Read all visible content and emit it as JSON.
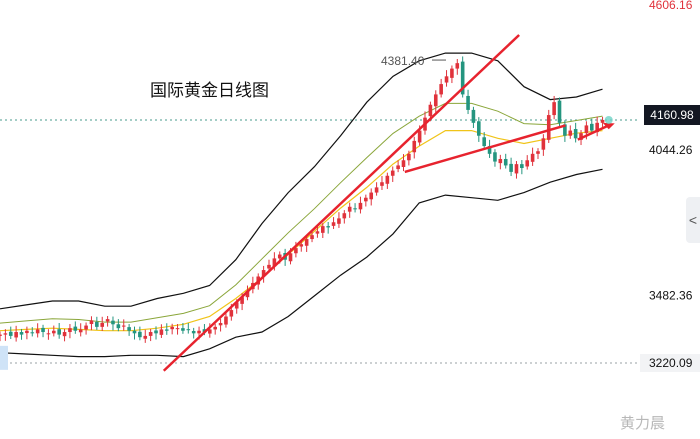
{
  "title": "国际黄金日线图",
  "watermark": "黄力晨",
  "current_price_label": "4160.98",
  "collapse_glyph": "<",
  "colors": {
    "up": "#e0323b",
    "down": "#24957f",
    "trendline": "#e7232e",
    "bollinger": "#111111",
    "ma_fast": "#f0c419",
    "ma_slow": "#c9a227",
    "ma_mid": "#8aa63a"
  },
  "chart_data": {
    "type": "candlestick",
    "title": "国际黄金日线图",
    "y_axis_labels": [
      "4606.16",
      "4160.98",
      "4044.26",
      "3482.36",
      "3220.09"
    ],
    "y_range": [
      3160,
      4640
    ],
    "annotations": [
      {
        "text": "4381.40",
        "y": 4381.4
      },
      {
        "text": "4160.98",
        "y": 4160.98
      },
      {
        "text": "3220.09",
        "y": 3220.09
      }
    ],
    "closes": [
      3330,
      3335,
      3325,
      3340,
      3330,
      3345,
      3335,
      3350,
      3340,
      3335,
      3345,
      3330,
      3340,
      3355,
      3345,
      3350,
      3365,
      3385,
      3360,
      3375,
      3390,
      3370,
      3355,
      3365,
      3345,
      3335,
      3320,
      3325,
      3340,
      3335,
      3350,
      3345,
      3360,
      3355,
      3345,
      3350,
      3335,
      3345,
      3340,
      3350,
      3360,
      3375,
      3400,
      3425,
      3455,
      3475,
      3500,
      3530,
      3555,
      3580,
      3600,
      3625,
      3640,
      3620,
      3645,
      3665,
      3680,
      3700,
      3715,
      3730,
      3750,
      3745,
      3765,
      3780,
      3800,
      3825,
      3815,
      3840,
      3860,
      3880,
      3900,
      3920,
      3945,
      3965,
      3985,
      4005,
      4030,
      4080,
      4120,
      4170,
      4220,
      4260,
      4300,
      4330,
      4360,
      4381,
      4260,
      4200,
      4150,
      4100,
      4060,
      4030,
      4000,
      4010,
      3985,
      3960,
      3990,
      3975,
      4005,
      4030,
      4040,
      4090,
      4180,
      4230,
      4150,
      4100,
      4120,
      4090,
      4110,
      4140,
      4120,
      4150,
      4161
    ],
    "bollinger": {
      "upper": [
        3430,
        3445,
        3460,
        3460,
        3440,
        3440,
        3470,
        3490,
        3520,
        3620,
        3760,
        3880,
        3980,
        4100,
        4230,
        4330,
        4390,
        4420,
        4420,
        4390,
        4290,
        4240,
        4250,
        4280
      ],
      "middle": [
        3345,
        3350,
        3355,
        3350,
        3345,
        3345,
        3355,
        3370,
        3400,
        3470,
        3550,
        3640,
        3730,
        3820,
        3900,
        3990,
        4060,
        4120,
        4120,
        4090,
        4070,
        4090,
        4110,
        4120
      ],
      "lower": [
        3260,
        3255,
        3250,
        3245,
        3245,
        3250,
        3250,
        3245,
        3275,
        3320,
        3340,
        3400,
        3480,
        3560,
        3630,
        3720,
        3840,
        3870,
        3860,
        3850,
        3880,
        3920,
        3950,
        3970
      ]
    },
    "trendlines": [
      {
        "from": [
          0.265,
          3190
        ],
        "to": [
          0.84,
          4490
        ]
      },
      {
        "from": [
          0.655,
          3960
        ],
        "to": [
          0.915,
          4140
        ]
      }
    ]
  }
}
